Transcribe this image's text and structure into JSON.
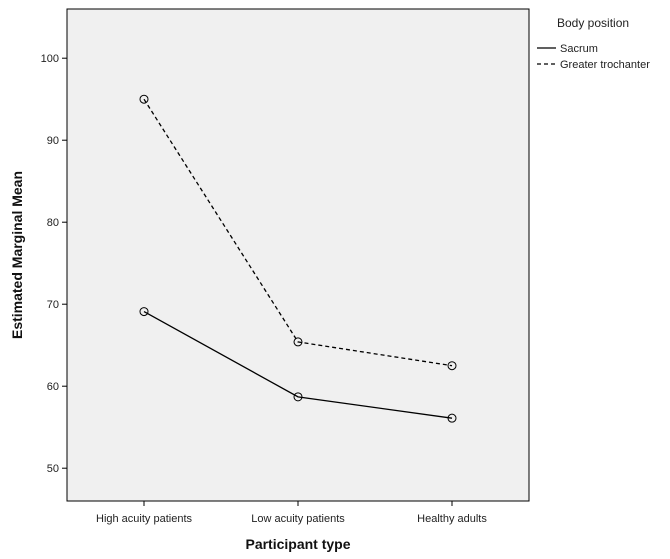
{
  "chart_data": {
    "type": "line",
    "xlabel": "Participant type",
    "ylabel": "Estimated Marginal Mean",
    "categories": [
      "High acuity patients",
      "Low acuity patients",
      "Healthy adults"
    ],
    "ylim": [
      46,
      106
    ],
    "yticks": [
      50,
      60,
      70,
      80,
      90,
      100
    ],
    "grid": false,
    "legend": {
      "title": "Body position",
      "placement": "right-top"
    },
    "series": [
      {
        "name": "Sacrum",
        "style": "solid",
        "values": [
          69.1,
          58.7,
          56.1
        ]
      },
      {
        "name": "Greater trochanter",
        "style": "dashed",
        "values": [
          95.0,
          65.4,
          62.5
        ]
      }
    ],
    "colors": {
      "plot_background": "#f0f0f0",
      "line": "#000000"
    }
  }
}
